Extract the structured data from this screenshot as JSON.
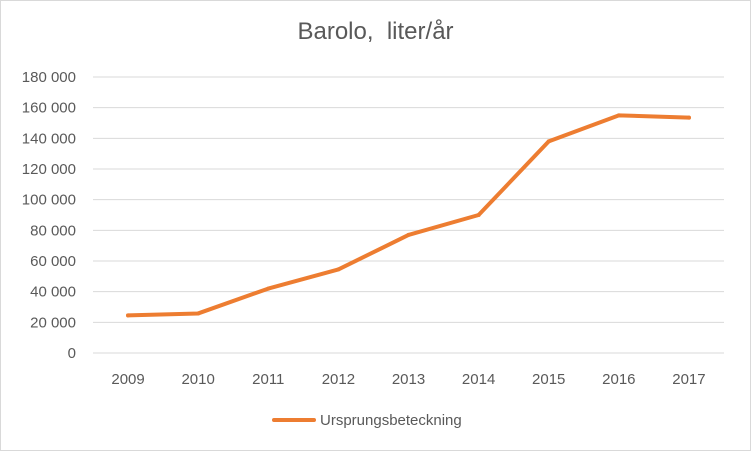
{
  "chart_data": {
    "type": "line",
    "title": "Barolo,  liter/år",
    "xlabel": "",
    "ylabel": "",
    "categories": [
      "2009",
      "2010",
      "2011",
      "2012",
      "2013",
      "2014",
      "2015",
      "2016",
      "2017"
    ],
    "series": [
      {
        "name": "Ursprungsbeteckning",
        "values": [
          24500,
          25800,
          42000,
          54500,
          77000,
          90000,
          138000,
          155000,
          153500
        ]
      }
    ],
    "ylim": [
      0,
      180000
    ],
    "y_ticks": [
      "0",
      "20 000",
      "40 000",
      "60 000",
      "80 000",
      "100 000",
      "120 000",
      "140 000",
      "160 000",
      "180 000"
    ],
    "grid": true,
    "legend_position": "bottom",
    "colors": {
      "series": "#ed7d31",
      "grid": "#d9d9d9",
      "text": "#595959"
    }
  }
}
